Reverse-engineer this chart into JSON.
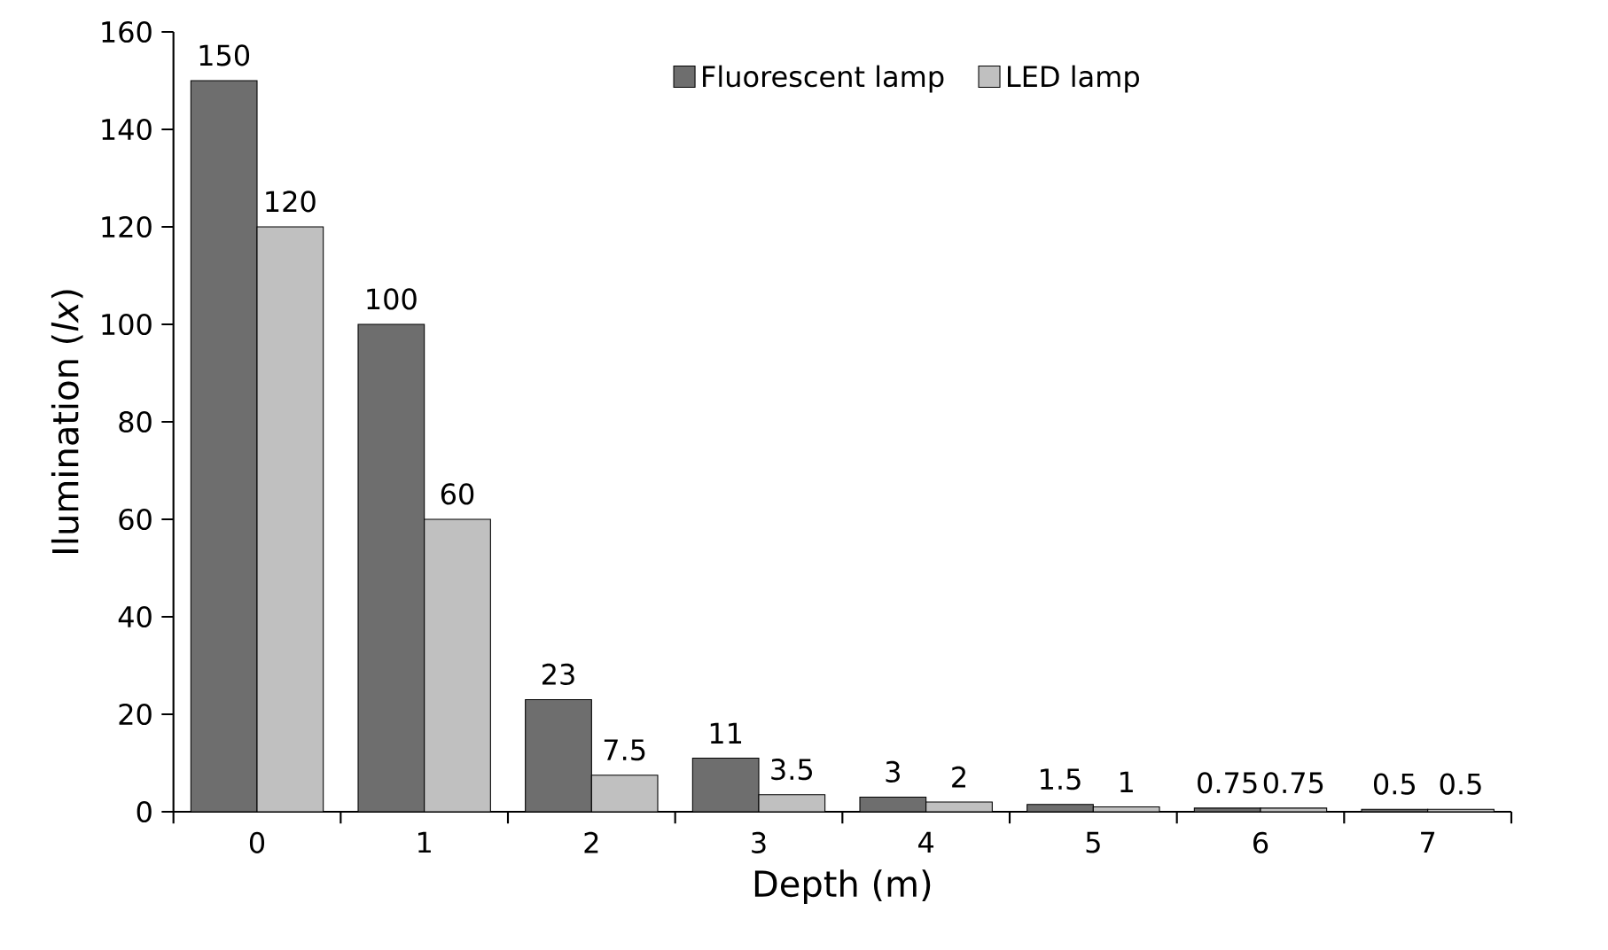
{
  "chart_data": {
    "type": "bar",
    "xlabel": "Depth (m)",
    "ylabel": "Ilumination (*lx*)",
    "categories": [
      "0",
      "1",
      "2",
      "3",
      "4",
      "5",
      "6",
      "7"
    ],
    "series": [
      {
        "name": "Fluorescent lamp",
        "color": "#6e6e6e",
        "values": [
          150,
          100,
          23,
          11,
          3,
          1.5,
          0.75,
          0.5
        ]
      },
      {
        "name": "LED lamp",
        "color": "#c0c0c0",
        "values": [
          120,
          60,
          7.5,
          3.5,
          2,
          1,
          0.75,
          0.5
        ]
      }
    ],
    "ylim": [
      0,
      160
    ],
    "yticks": [
      0,
      20,
      40,
      60,
      80,
      100,
      120,
      140,
      160
    ],
    "data_labels": true,
    "legend": "top",
    "grid": false
  }
}
